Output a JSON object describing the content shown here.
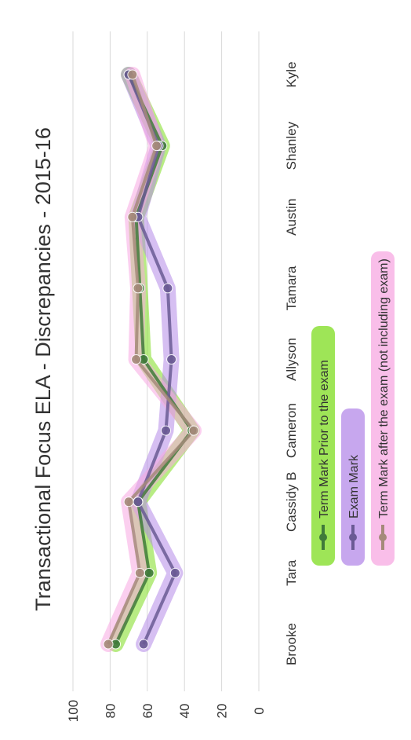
{
  "chart_data": {
    "type": "line",
    "title": "Transactional Focus ELA - Discrepancies - 2015-16",
    "categories": [
      "Brooke",
      "Tara",
      "Cassidy B",
      "Cameron",
      "Allyson",
      "Tamara",
      "Austin",
      "Shanley",
      "Kyle"
    ],
    "ylim": [
      0,
      100
    ],
    "yticks": [
      "0",
      "20",
      "40",
      "60",
      "80",
      "100"
    ],
    "grid": true,
    "legend_position": "bottom",
    "series": [
      {
        "name": "Term Mark Prior to the exam",
        "values": [
          77,
          59,
          65,
          36,
          62,
          64,
          66,
          52,
          70
        ],
        "color": "#3f7a3a",
        "highlight": "#7ddc1f"
      },
      {
        "name": "Exam Mark",
        "values": [
          62,
          45,
          65,
          50,
          47,
          49,
          65,
          54,
          70
        ],
        "color": "#6a5a94",
        "highlight": "#b48ae8"
      },
      {
        "name": "Term Mark after the exam (not including exam)",
        "values": [
          81,
          64,
          70,
          35,
          66,
          65,
          68,
          55,
          68
        ],
        "color": "#a58a7a",
        "highlight": "#f7a8e2"
      }
    ]
  }
}
